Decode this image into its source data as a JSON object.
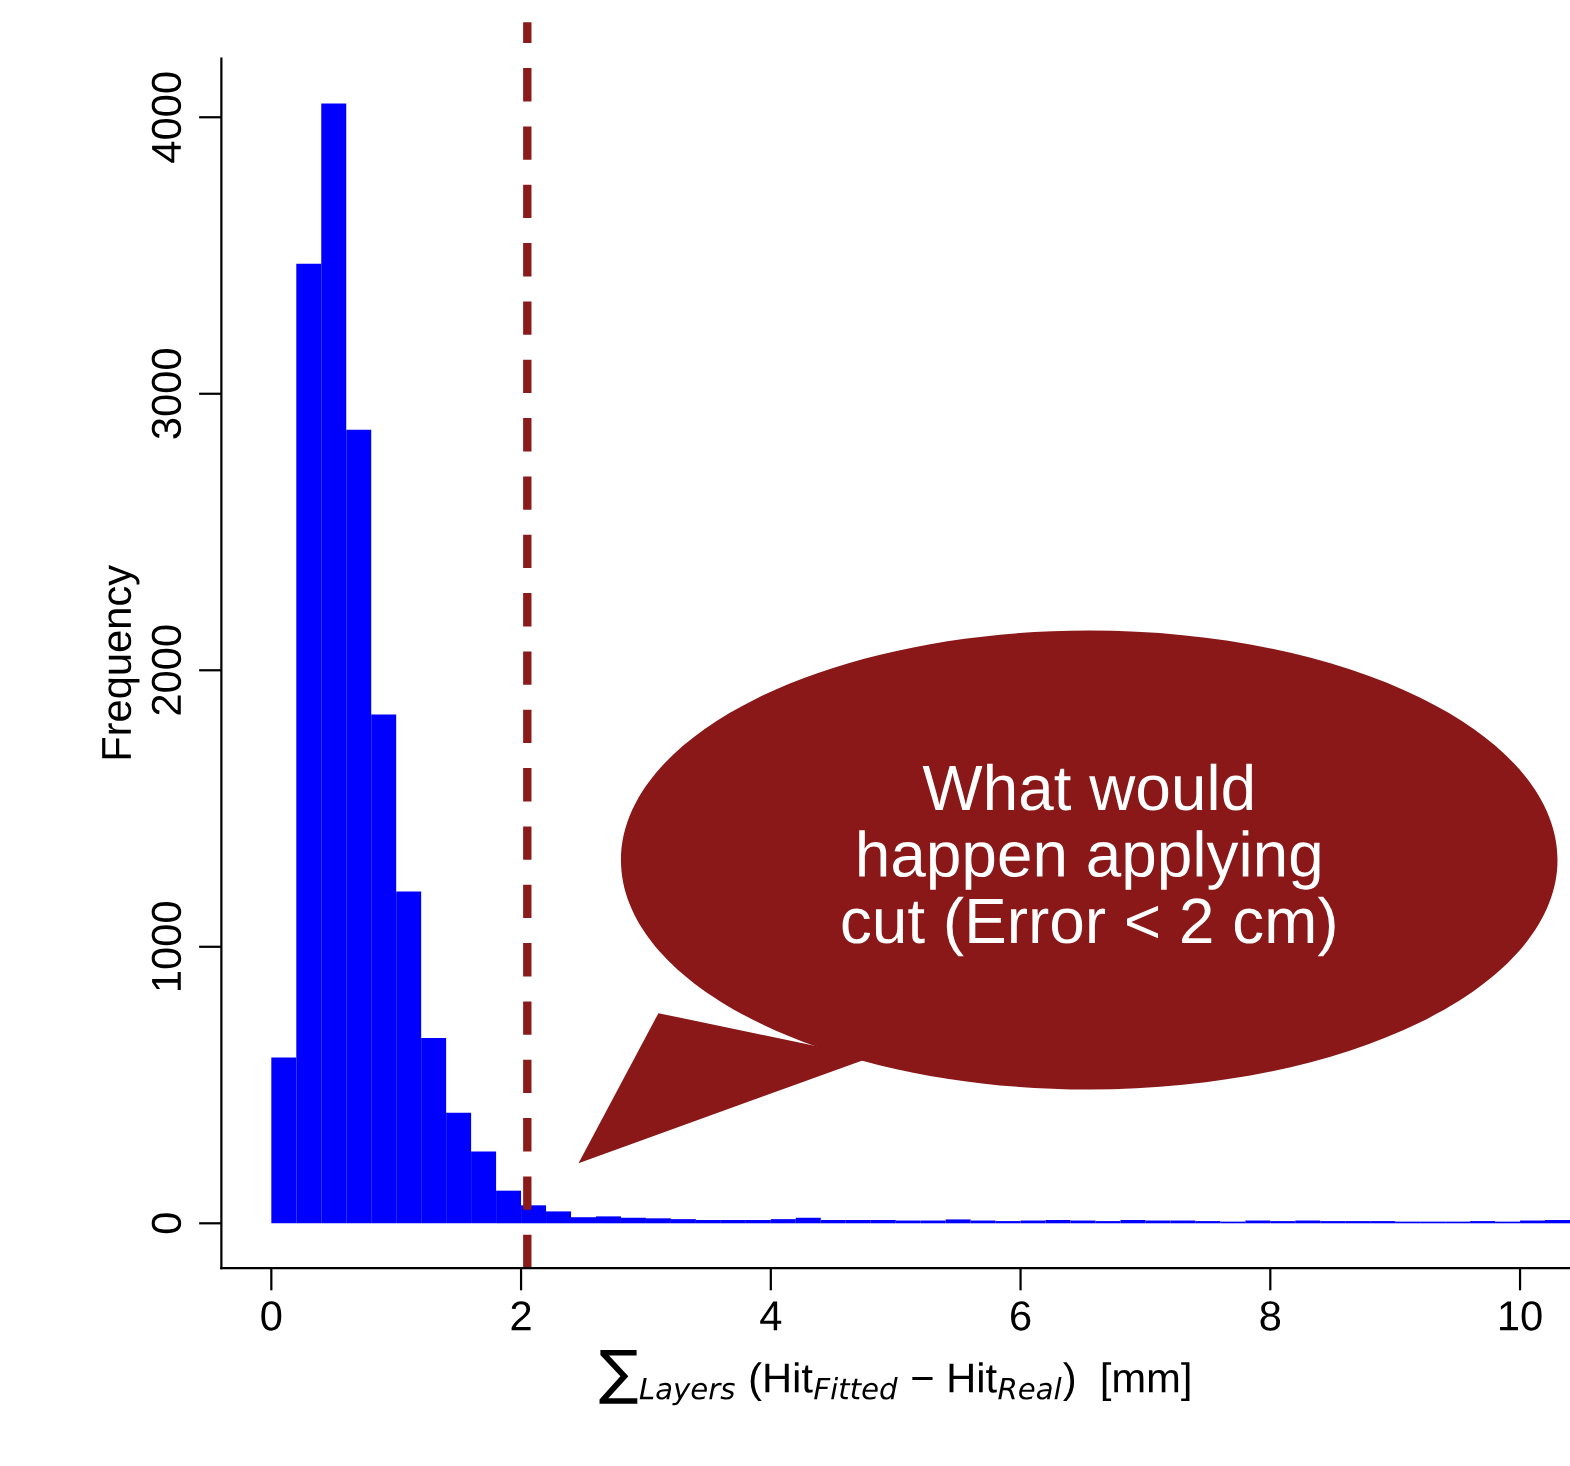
{
  "chart_data": {
    "type": "histogram",
    "xlabel": "∑$_{Layers}$ (Hit$_{Fitted}$ − Hit$_{Real}$)  [mm]",
    "ylabel": "Frequency",
    "bins": [
      0,
      0.2,
      0.4,
      0.6,
      0.8,
      1.0,
      1.2,
      1.4,
      1.6,
      1.8,
      2.0,
      2.2,
      2.4,
      2.6,
      2.8,
      3.0,
      3.2,
      3.4,
      3.6,
      3.8,
      4.0,
      4.2,
      4.4,
      4.6,
      4.8,
      5.0,
      5.2,
      5.4,
      5.6,
      5.8,
      6.0,
      6.2,
      6.4,
      6.6,
      6.8,
      7.0,
      7.2,
      7.4,
      7.6,
      7.8,
      8.0,
      8.2,
      8.4,
      8.6,
      8.8,
      9.0,
      9.2,
      9.4,
      9.6,
      9.8,
      10.0,
      10.2,
      10.4
    ],
    "values": [
      600,
      3470,
      4050,
      2870,
      1840,
      1200,
      670,
      400,
      260,
      118,
      65,
      43,
      22,
      25,
      20,
      18,
      15,
      12,
      12,
      12,
      15,
      20,
      12,
      12,
      12,
      10,
      10,
      14,
      10,
      8,
      10,
      12,
      10,
      8,
      12,
      10,
      10,
      8,
      6,
      10,
      8,
      10,
      8,
      8,
      8,
      6,
      6,
      6,
      8,
      6,
      10,
      12
    ],
    "color": "#0000ff",
    "xlim": [
      -0.4,
      10.4
    ],
    "ylim": [
      -162,
      4212
    ],
    "xticks": [
      0,
      2,
      4,
      6,
      8,
      10
    ],
    "yticks": [
      0,
      1000,
      2000,
      3000,
      4000
    ],
    "ref_lines": [
      {
        "axis": "x",
        "value": 2.05,
        "color": "#8b1a1a",
        "line_style": "dashed"
      }
    ],
    "annotations": [
      "What would\nhappen applying\ncut (Error < 2 cm)"
    ],
    "grid": false
  }
}
